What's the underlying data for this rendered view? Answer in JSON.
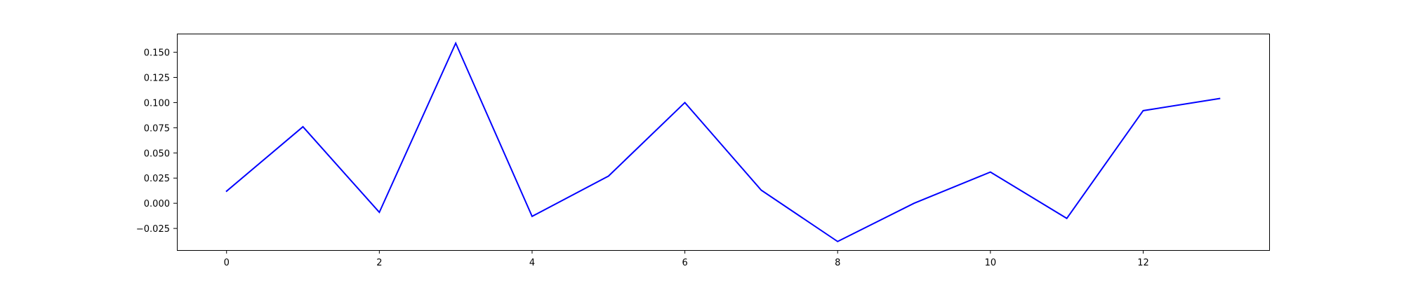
{
  "chart_data": {
    "type": "line",
    "title": "",
    "xlabel": "",
    "ylabel": "",
    "x": [
      0,
      1,
      2,
      3,
      4,
      5,
      6,
      7,
      8,
      9,
      10,
      11,
      12,
      13
    ],
    "series": [
      {
        "color": "#0000ff",
        "values": [
          0.012,
          0.076,
          -0.009,
          0.159,
          -0.013,
          0.027,
          0.1,
          0.013,
          -0.038,
          0.0,
          0.031,
          -0.015,
          0.092,
          0.104
        ]
      }
    ],
    "xlim": [
      -0.65,
      13.65
    ],
    "ylim": [
      -0.0465,
      0.1685
    ],
    "xticks": [
      0,
      2,
      4,
      6,
      8,
      10,
      12
    ],
    "xtick_labels": [
      "0",
      "2",
      "4",
      "6",
      "8",
      "10",
      "12"
    ],
    "yticks": [
      -0.025,
      0,
      0.025,
      0.05,
      0.075,
      0.1,
      0.125,
      0.15
    ],
    "ytick_labels": [
      "−0.025",
      "0.000",
      "0.025",
      "0.050",
      "0.075",
      "0.100",
      "0.125",
      "0.150"
    ],
    "grid": false,
    "legend": "none"
  }
}
